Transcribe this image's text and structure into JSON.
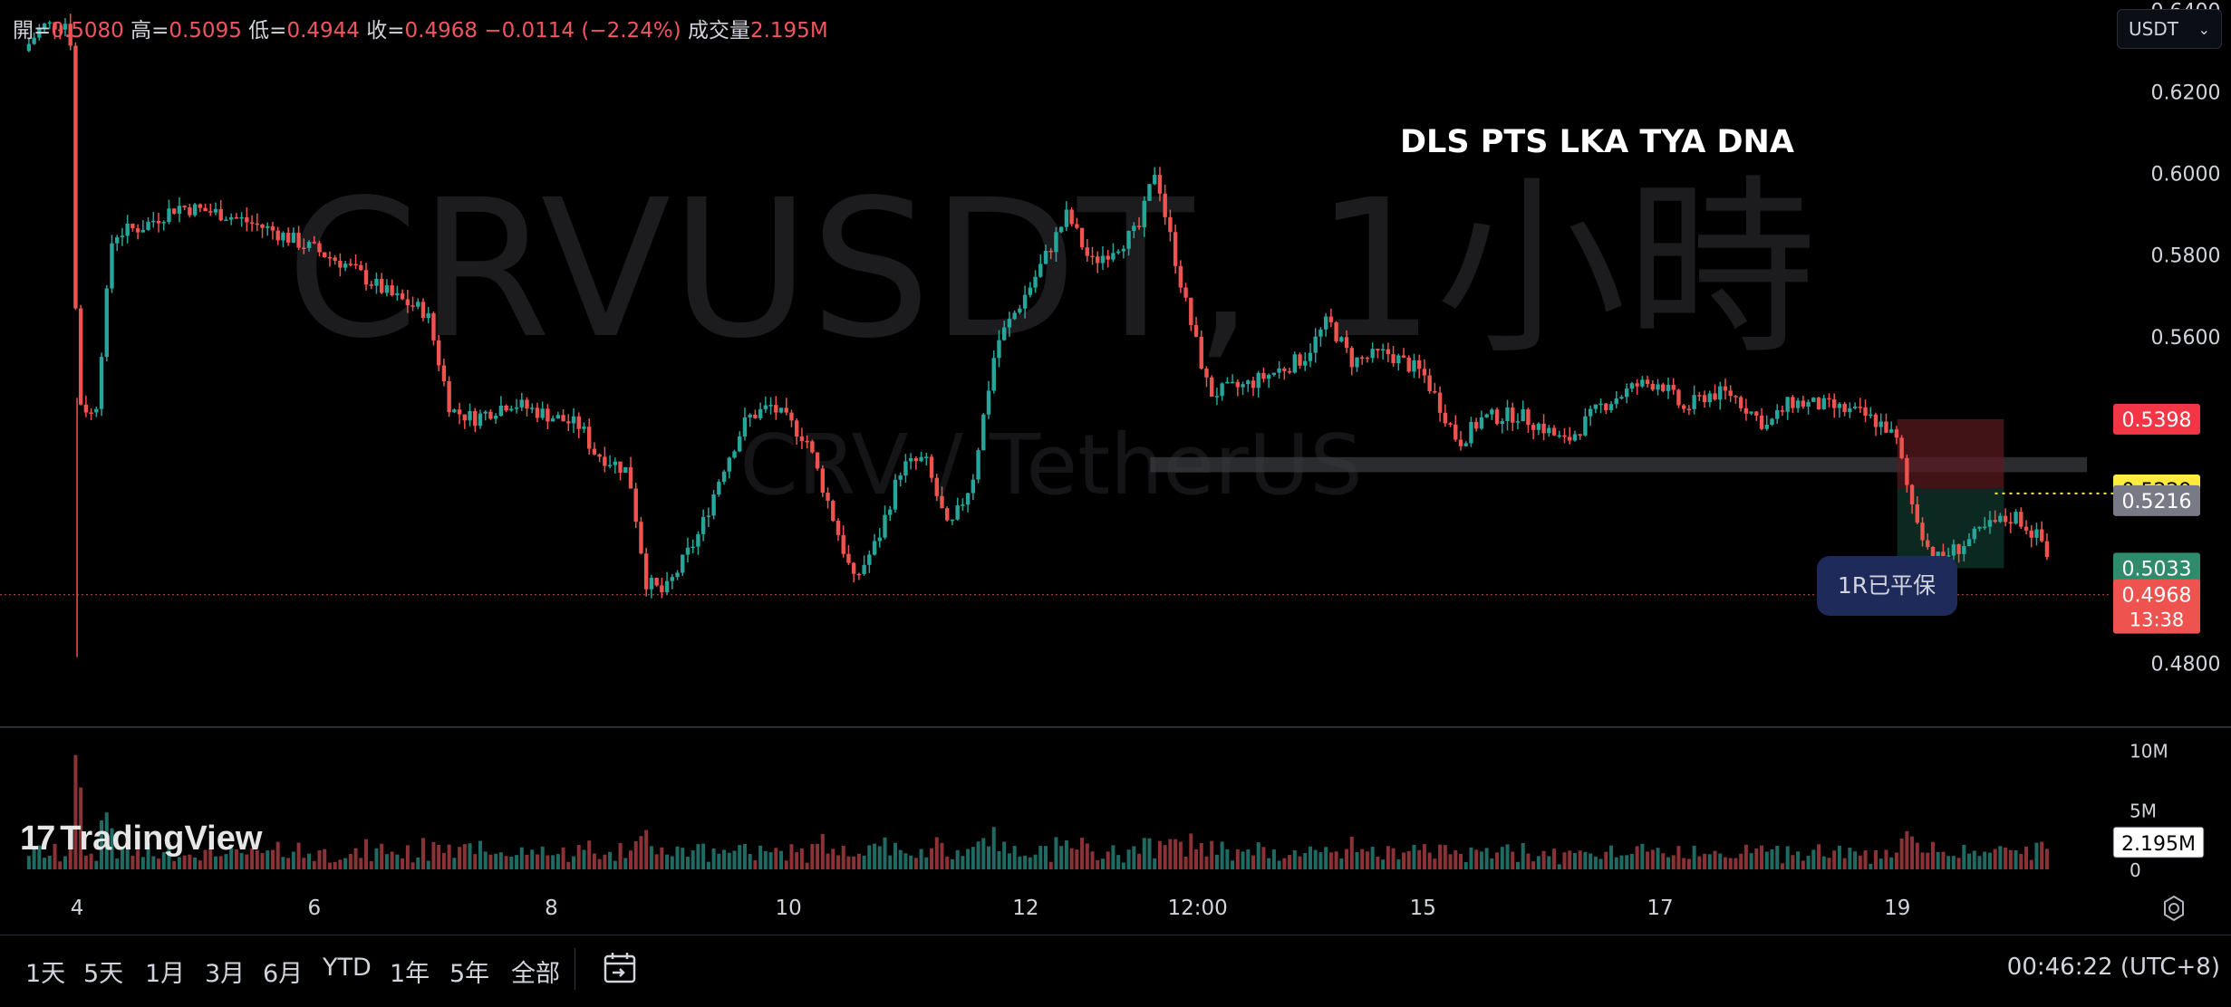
{
  "header": {
    "open_label": "開=",
    "open": "0.5080",
    "high_label": "高=",
    "high": "0.5095",
    "low_label": "低=",
    "low": "0.4944",
    "close_label": "收=",
    "close": "0.4968",
    "change": "−0.0114 (−2.24%)",
    "volume_label": "成交量",
    "volume": "2.195M"
  },
  "currency_select": "USDT",
  "watermark": {
    "symbol": "CRVUSDT, 1小時",
    "description": "CRV / TetherUS"
  },
  "annotation_title": "DLS PTS LKA TYA DNA",
  "trade_badge": "1R已平保",
  "price_labels": {
    "stop": "0.5398",
    "entry": "0.5229",
    "ref": "0.5216",
    "target": "0.5033",
    "last": "0.4968",
    "countdown": "13:38",
    "volume_last": "2.195M"
  },
  "colors": {
    "up": "#26a69a",
    "down": "#ef5350",
    "background": "#000000",
    "stop_label": "#f23645",
    "entry_label": "#ffeb3b",
    "ref_label": "#787b86",
    "target_label": "#2e8b6b",
    "badge": "#1e2a5a"
  },
  "chart_data": {
    "type": "candlestick",
    "symbol": "CRVUSDT",
    "interval": "1小時",
    "y_axis": {
      "ticks": [
        "0.6400",
        "0.6200",
        "0.6000",
        "0.5800",
        "0.5600",
        "0.4800"
      ],
      "range": [
        0.465,
        0.6425
      ]
    },
    "volume_axis": {
      "ticks": [
        "10M",
        "5M",
        "0"
      ],
      "range": [
        0,
        10.5
      ]
    },
    "x_axis": {
      "ticks": [
        "4",
        "6",
        "8",
        "10",
        "12",
        "12:00",
        "15",
        "17",
        "19"
      ]
    },
    "price_path": [
      [
        3.2,
        0.63
      ],
      [
        3.35,
        0.636
      ],
      [
        3.55,
        0.637
      ],
      [
        3.6,
        0.632
      ],
      [
        3.65,
        0.545
      ],
      [
        3.8,
        0.54
      ],
      [
        3.95,
        0.585
      ],
      [
        4.2,
        0.587
      ],
      [
        4.5,
        0.592
      ],
      [
        4.9,
        0.59
      ],
      [
        5.3,
        0.586
      ],
      [
        5.6,
        0.582
      ],
      [
        5.9,
        0.578
      ],
      [
        6.3,
        0.57
      ],
      [
        6.6,
        0.566
      ],
      [
        6.8,
        0.542
      ],
      [
        7.0,
        0.54
      ],
      [
        7.3,
        0.544
      ],
      [
        7.6,
        0.541
      ],
      [
        7.9,
        0.538
      ],
      [
        8.0,
        0.532
      ],
      [
        8.3,
        0.527
      ],
      [
        8.45,
        0.5
      ],
      [
        8.6,
        0.497
      ],
      [
        8.9,
        0.512
      ],
      [
        9.1,
        0.528
      ],
      [
        9.3,
        0.54
      ],
      [
        9.5,
        0.543
      ],
      [
        9.8,
        0.535
      ],
      [
        10.0,
        0.518
      ],
      [
        10.2,
        0.5
      ],
      [
        10.4,
        0.51
      ],
      [
        10.6,
        0.528
      ],
      [
        10.8,
        0.53
      ],
      [
        11.0,
        0.512
      ],
      [
        11.2,
        0.525
      ],
      [
        11.4,
        0.558
      ],
      [
        11.7,
        0.573
      ],
      [
        12.0,
        0.59
      ],
      [
        12.2,
        0.578
      ],
      [
        12.4,
        0.582
      ],
      [
        12.6,
        0.586
      ],
      [
        12.75,
        0.602
      ],
      [
        12.8,
        0.593
      ],
      [
        13.0,
        0.568
      ],
      [
        13.2,
        0.546
      ],
      [
        13.5,
        0.548
      ],
      [
        13.8,
        0.552
      ],
      [
        14.0,
        0.555
      ],
      [
        14.2,
        0.564
      ],
      [
        14.4,
        0.554
      ],
      [
        14.7,
        0.556
      ],
      [
        15.0,
        0.551
      ],
      [
        15.2,
        0.54
      ],
      [
        15.3,
        0.534
      ],
      [
        15.5,
        0.54
      ],
      [
        15.8,
        0.541
      ],
      [
        16.0,
        0.538
      ],
      [
        16.2,
        0.534
      ],
      [
        16.5,
        0.543
      ],
      [
        16.8,
        0.548
      ],
      [
        17.0,
        0.549
      ],
      [
        17.2,
        0.542
      ],
      [
        17.4,
        0.546
      ],
      [
        17.6,
        0.546
      ],
      [
        17.9,
        0.538
      ],
      [
        18.1,
        0.544
      ],
      [
        18.4,
        0.543
      ],
      [
        18.7,
        0.541
      ],
      [
        18.9,
        0.538
      ],
      [
        19.0,
        0.534
      ],
      [
        19.1,
        0.521
      ],
      [
        19.3,
        0.505
      ],
      [
        19.5,
        0.508
      ],
      [
        19.8,
        0.514
      ],
      [
        20.0,
        0.516
      ],
      [
        20.25,
        0.509
      ],
      [
        20.3,
        0.497
      ]
    ],
    "horizontal_lines": [
      {
        "name": "resistance-zone",
        "from_x": 12.7,
        "to_x": 20.6,
        "low": 0.5268,
        "high": 0.5305
      }
    ],
    "position": {
      "entry": 0.5229,
      "stop": 0.5398,
      "target": 0.5033,
      "from_x": 19.0,
      "to_x": 19.9
    },
    "last_price": 0.4968,
    "last_volume_m": 2.195,
    "volume_spike": {
      "x": 3.65,
      "value_m": 9.6
    }
  }
}
